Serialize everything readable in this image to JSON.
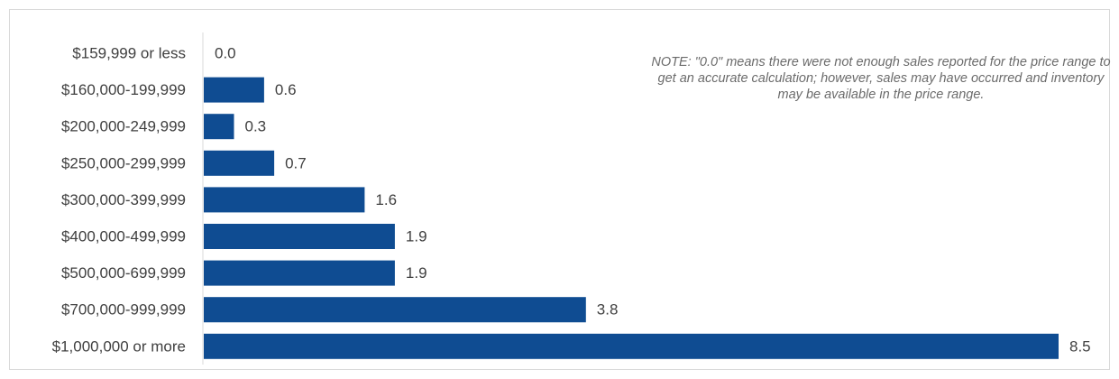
{
  "colors": {
    "bar": "#0f4c92",
    "axis": "#d9d9d9",
    "text": "#404040",
    "note": "#6b6b6b"
  },
  "note": "NOTE: \"0.0\" means there were not enough sales reported for the price range to get an accurate calculation;  however, sales may have occurred and inventory may be available in the price range.",
  "chart_data": {
    "type": "bar",
    "orientation": "horizontal",
    "categories": [
      "$159,999 or less",
      "$160,000-199,999",
      "$200,000-249,999",
      "$250,000-299,999",
      "$300,000-399,999",
      "$400,000-499,999",
      "$500,000-699,999",
      "$700,000-999,999",
      "$1,000,000 or more"
    ],
    "values": [
      0.0,
      0.6,
      0.3,
      0.7,
      1.6,
      1.9,
      1.9,
      3.8,
      8.5
    ],
    "value_labels": [
      "0.0",
      "0.6",
      "0.3",
      "0.7",
      "1.6",
      "1.9",
      "1.9",
      "3.8",
      "8.5"
    ],
    "xlim": [
      0,
      8.5
    ],
    "grid": false,
    "legend": "none"
  }
}
